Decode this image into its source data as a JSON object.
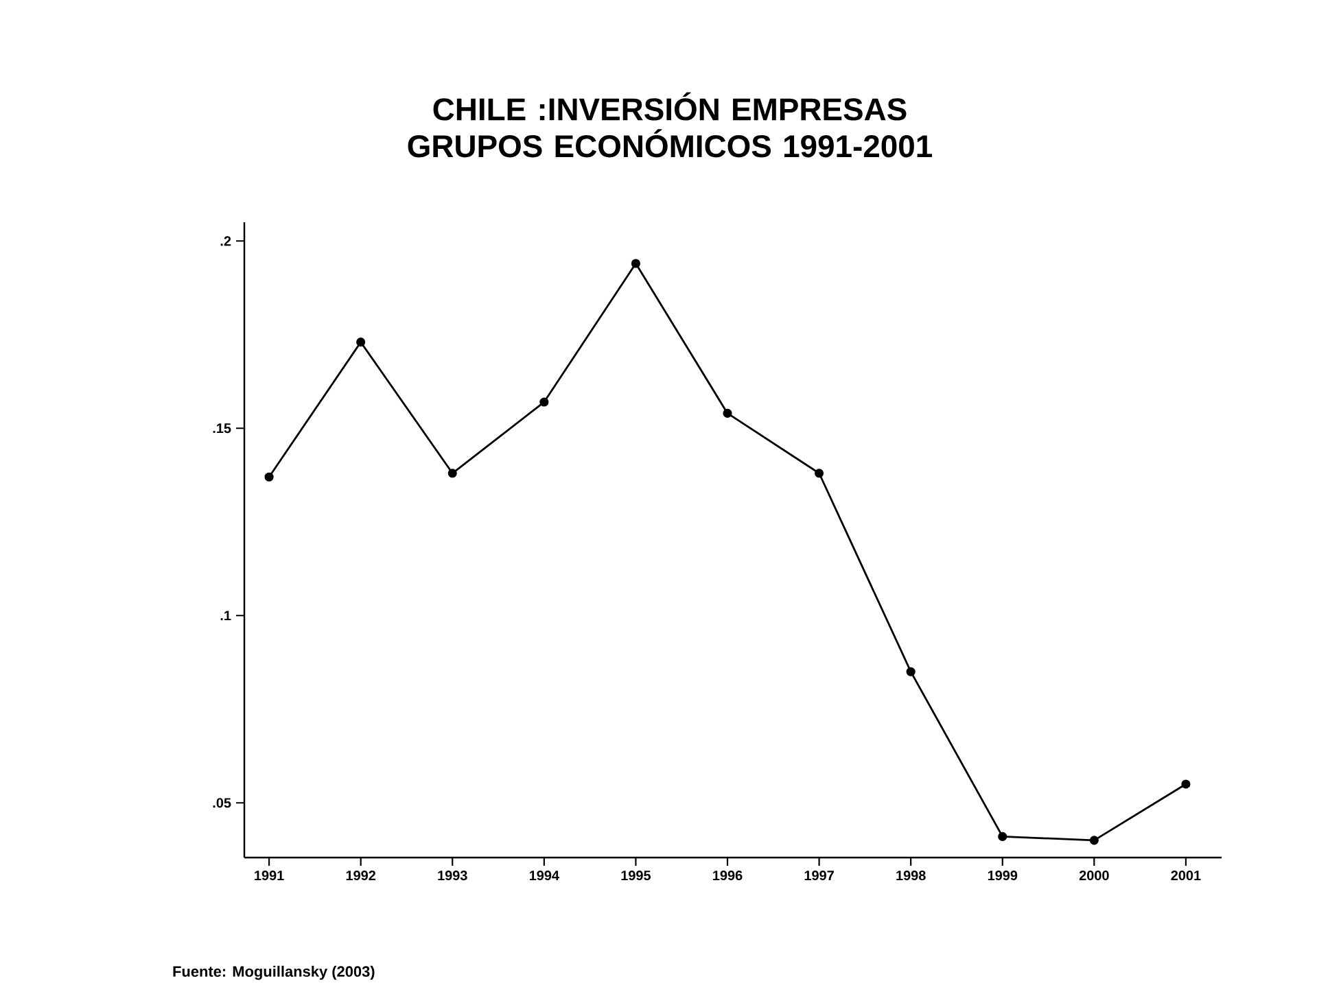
{
  "chart_data": {
    "type": "line",
    "title": "CHILE :INVERSIÓN EMPRESAS GRUPOS ECONÓMICOS 1991-2001",
    "x": [
      1991,
      1992,
      1993,
      1994,
      1995,
      1996,
      1997,
      1998,
      1999,
      2000,
      2001
    ],
    "series": [
      {
        "color": "#000000",
        "values": [
          0.137,
          0.173,
          0.138,
          0.157,
          0.194,
          0.154,
          0.138,
          0.085,
          0.041,
          0.04,
          0.055
        ]
      }
    ],
    "xlim": [
      1990.73,
      2001.39
    ],
    "ylim": [
      0.0354,
      0.205
    ],
    "xticks": [
      1991,
      1992,
      1993,
      1994,
      1995,
      1996,
      1997,
      1998,
      1999,
      2000,
      2001
    ],
    "yticks": [
      {
        "value": 0.05,
        "label": ".05"
      },
      {
        "value": 0.1,
        "label": ".1"
      },
      {
        "value": 0.15,
        "label": ".15"
      },
      {
        "value": 0.2,
        "label": ".2"
      }
    ],
    "marker": "circle",
    "line_style": "solid",
    "annotations": [
      "Fuente: Moguillansky (2003)"
    ]
  }
}
